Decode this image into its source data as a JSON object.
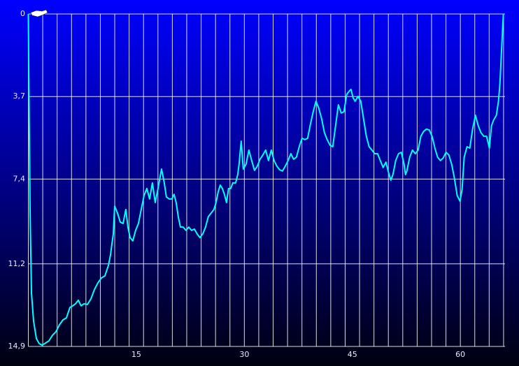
{
  "chart_data": {
    "type": "line",
    "x": [
      0,
      0.05,
      0.24,
      0.44,
      0.73,
      1.12,
      1.51,
      1.89,
      2.28,
      2.86,
      3.35,
      3.83,
      4.32,
      4.81,
      5.29,
      5.78,
      6.17,
      6.55,
      6.94,
      7.33,
      7.72,
      8.2,
      8.69,
      9.17,
      9.66,
      10.15,
      10.63,
      11.12,
      11.41,
      11.6,
      11.8,
      11.99,
      12.38,
      12.77,
      13.16,
      13.54,
      13.83,
      14.13,
      14.51,
      14.9,
      15.29,
      15.68,
      16.07,
      16.46,
      16.84,
      17.23,
      17.62,
      18.01,
      18.5,
      18.88,
      19.17,
      19.56,
      19.95,
      20.24,
      20.53,
      20.82,
      21.12,
      21.5,
      21.89,
      22.28,
      22.67,
      23.06,
      23.45,
      23.83,
      24.22,
      24.61,
      25.0,
      25.39,
      25.78,
      26.07,
      26.36,
      26.65,
      26.94,
      27.23,
      27.52,
      27.81,
      28.11,
      28.4,
      28.79,
      29.08,
      29.27,
      29.56,
      29.85,
      30.24,
      30.63,
      31.02,
      31.41,
      31.8,
      32.18,
      32.57,
      32.96,
      33.35,
      33.74,
      34.13,
      34.51,
      34.9,
      35.29,
      35.68,
      36.07,
      36.46,
      36.84,
      37.23,
      37.62,
      38.01,
      38.4,
      38.79,
      39.17,
      39.56,
      39.95,
      40.34,
      40.73,
      41.12,
      41.5,
      41.89,
      42.28,
      42.67,
      43.06,
      43.45,
      43.83,
      44.22,
      44.61,
      44.81,
      45.1,
      45.39,
      45.78,
      46.17,
      46.55,
      46.94,
      47.33,
      47.72,
      48.11,
      48.5,
      48.88,
      49.27,
      49.66,
      50.05,
      50.34,
      50.63,
      51.02,
      51.41,
      51.8,
      52.18,
      52.38,
      52.57,
      52.96,
      53.35,
      53.74,
      54.13,
      54.51,
      54.9,
      55.29,
      55.68,
      56.07,
      56.46,
      56.84,
      57.23,
      57.62,
      58.01,
      58.4,
      58.79,
      59.17,
      59.56,
      59.95,
      60.24,
      60.53,
      60.92,
      61.31,
      61.7,
      62.09,
      62.48,
      62.86,
      63.25,
      63.64,
      64.03,
      64.32,
      64.61,
      65.0,
      65.29,
      65.49,
      65.68,
      65.87,
      65.97
    ],
    "series": [
      {
        "color": "#00ffff",
        "values": [
          0,
          2.19,
          8.76,
          12.52,
          13.77,
          14.55,
          14.77,
          14.84,
          14.77,
          14.65,
          14.4,
          14.24,
          13.93,
          13.71,
          13.62,
          13.15,
          13.08,
          12.99,
          12.83,
          13.08,
          12.99,
          13.02,
          12.77,
          12.36,
          12.05,
          11.83,
          11.74,
          11.27,
          10.8,
          10.33,
          9.86,
          8.61,
          8.92,
          9.33,
          9.39,
          8.76,
          9.55,
          10.02,
          10.17,
          9.7,
          9.39,
          8.76,
          8.14,
          7.82,
          8.29,
          7.57,
          8.45,
          7.82,
          6.95,
          7.57,
          8.2,
          8.29,
          8.29,
          8.08,
          8.45,
          9.08,
          9.55,
          9.55,
          9.7,
          9.55,
          9.7,
          9.64,
          9.86,
          10.02,
          9.86,
          9.55,
          9.08,
          8.92,
          8.76,
          8.45,
          7.98,
          7.67,
          7.82,
          8.08,
          8.45,
          7.82,
          7.82,
          7.57,
          7.57,
          7.2,
          6.73,
          5.7,
          6.95,
          6.73,
          6.1,
          6.57,
          7.01,
          6.82,
          6.51,
          6.32,
          6.1,
          6.57,
          6.1,
          6.57,
          6.82,
          6.98,
          7.04,
          6.82,
          6.57,
          6.26,
          6.51,
          6.42,
          5.95,
          5.57,
          5.63,
          5.57,
          4.95,
          4.38,
          3.91,
          4.23,
          4.69,
          5.32,
          5.63,
          5.88,
          5.95,
          5.01,
          4.07,
          4.44,
          4.38,
          3.6,
          3.44,
          3.38,
          3.76,
          3.91,
          3.69,
          3.91,
          4.69,
          5.48,
          5.95,
          6.1,
          6.26,
          6.26,
          6.57,
          6.88,
          6.64,
          7.14,
          7.45,
          7.2,
          6.57,
          6.26,
          6.2,
          6.73,
          7.2,
          7.04,
          6.42,
          6.1,
          6.26,
          6.1,
          5.48,
          5.26,
          5.16,
          5.2,
          5.48,
          6.01,
          6.42,
          6.57,
          6.45,
          6.2,
          6.32,
          6.73,
          7.36,
          8.14,
          8.39,
          7.86,
          6.42,
          5.95,
          6.01,
          5.16,
          4.54,
          5.01,
          5.32,
          5.48,
          5.48,
          6.01,
          5.01,
          4.76,
          4.54,
          3.91,
          3.13,
          1.88,
          0.63,
          0
        ]
      }
    ],
    "xlim": [
      0,
      66.2
    ],
    "ylim": [
      0,
      14.9
    ],
    "y_inverted": true,
    "xticks": [
      15,
      30,
      45,
      60
    ],
    "xgrid": [
      0,
      2,
      4,
      6,
      8,
      10,
      12,
      14,
      16,
      18,
      20,
      22,
      24,
      26,
      28,
      30,
      32,
      34,
      36,
      38,
      40,
      42,
      44,
      46,
      48,
      50,
      52,
      54,
      56,
      58,
      60,
      62,
      64,
      66
    ],
    "yticks": [
      0,
      {
        "value": 3.7,
        "label": "3,7"
      },
      {
        "value": 7.4,
        "label": "7,4"
      },
      {
        "value": 11.2,
        "label": "11,2"
      },
      {
        "value": 14.9,
        "label": "14,9"
      }
    ],
    "grid": true
  }
}
